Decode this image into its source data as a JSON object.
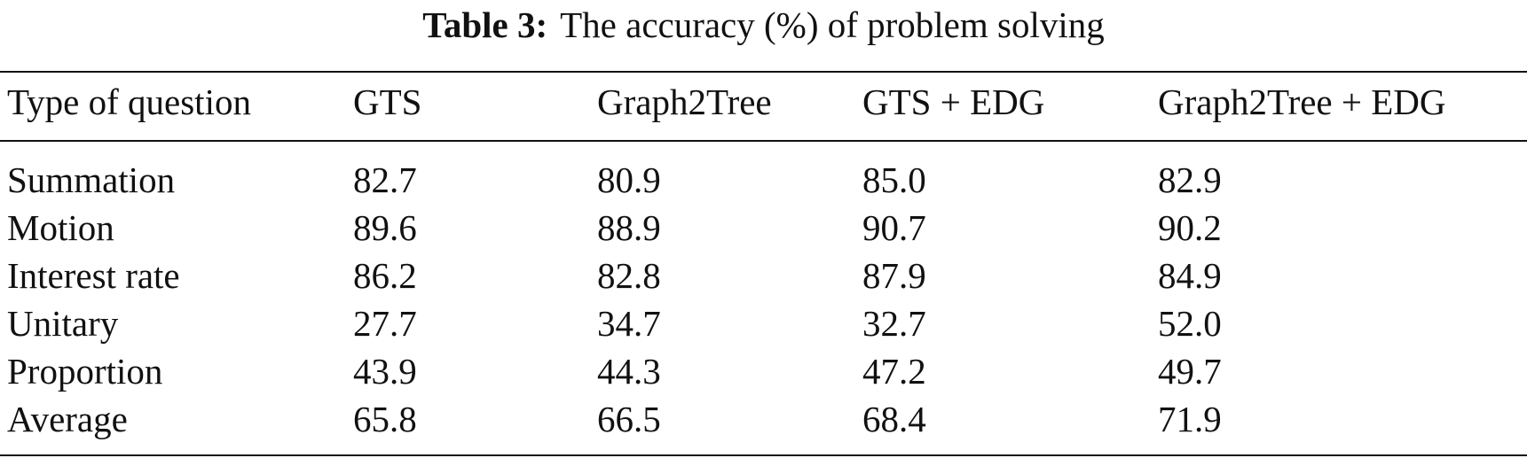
{
  "caption": {
    "label": "Table 3:",
    "text": "The accuracy (%) of problem solving"
  },
  "table": {
    "headers": [
      "Type of question",
      "GTS",
      "Graph2Tree",
      "GTS + EDG",
      "Graph2Tree + EDG"
    ],
    "rows": [
      [
        "Summation",
        "82.7",
        "80.9",
        "85.0",
        "82.9"
      ],
      [
        "Motion",
        "89.6",
        "88.9",
        "90.7",
        "90.2"
      ],
      [
        "Interest rate",
        "86.2",
        "82.8",
        "87.9",
        "84.9"
      ],
      [
        "Unitary",
        "27.7",
        "34.7",
        "32.7",
        "52.0"
      ],
      [
        "Proportion",
        "43.9",
        "44.3",
        "47.2",
        "49.7"
      ],
      [
        "Average",
        "65.8",
        "66.5",
        "68.4",
        "71.9"
      ]
    ]
  }
}
